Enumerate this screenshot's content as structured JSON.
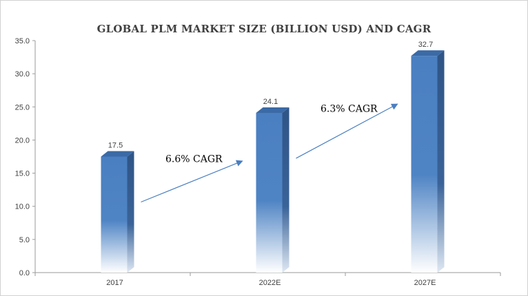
{
  "chart_data": {
    "type": "bar",
    "title": "GLOBAL PLM MARKET SIZE (BILLION USD) AND CAGR",
    "categories": [
      "2017",
      "2022E",
      "2027E"
    ],
    "values": [
      17.5,
      24.1,
      32.7
    ],
    "data_labels": [
      "17.5",
      "24.1",
      "32.7"
    ],
    "ylim": [
      0,
      35
    ],
    "yticks": [
      "0.0",
      "5.0",
      "10.0",
      "15.0",
      "20.0",
      "25.0",
      "30.0",
      "35.0"
    ],
    "grid": false,
    "legend": "none",
    "bar_color": "#4a7fc1",
    "annotations": [
      {
        "text": "6.6% CAGR",
        "from": "2017",
        "to": "2022E"
      },
      {
        "text": "6.3% CAGR",
        "from": "2022E",
        "to": "2027E"
      }
    ]
  }
}
